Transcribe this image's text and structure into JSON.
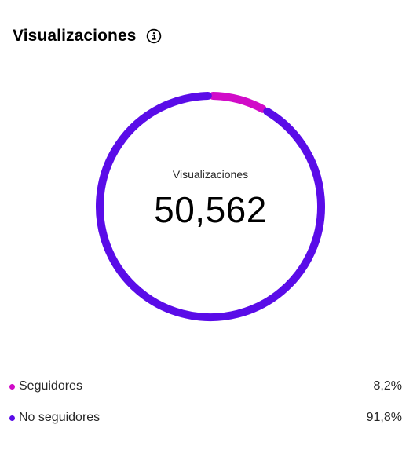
{
  "header": {
    "title": "Visualizaciones",
    "info_icon": "info-circle-icon"
  },
  "summary": {
    "center_label": "Visualizaciones",
    "total": "50,562"
  },
  "colors": {
    "seguidores": "#d10bc8",
    "no_seguidores": "#5a0ce8"
  },
  "legend": [
    {
      "label": "Seguidores",
      "value": "8,2%",
      "color": "#d10bc8"
    },
    {
      "label": "No seguidores",
      "value": "91,8%",
      "color": "#5a0ce8"
    }
  ],
  "chart_data": {
    "type": "pie",
    "categories": [
      "Seguidores",
      "No seguidores"
    ],
    "values": [
      8.2,
      91.8
    ],
    "title": "Visualizaciones",
    "center_value": 50562
  }
}
